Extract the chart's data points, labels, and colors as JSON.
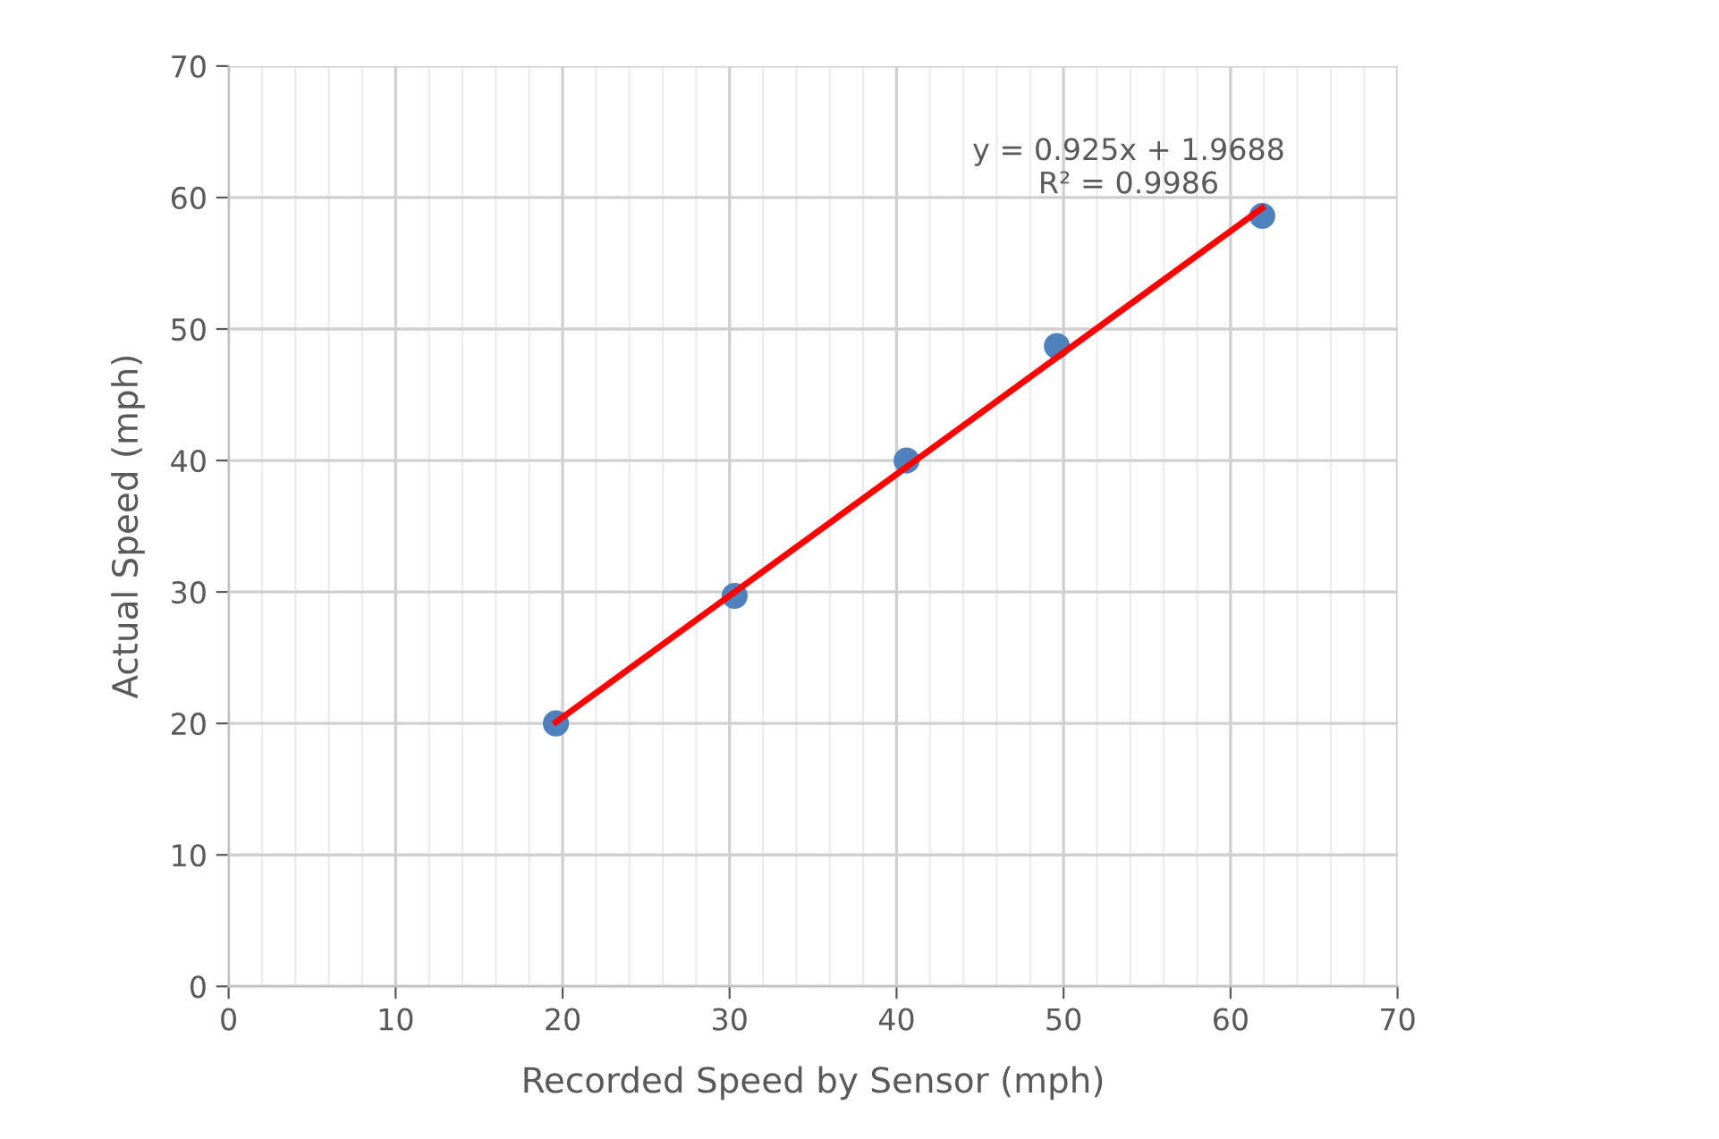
{
  "chart_data": {
    "type": "scatter",
    "xlabel": "Recorded Speed by Sensor (mph)",
    "ylabel": "Actual Speed (mph)",
    "series": [
      {
        "color": "#4f81bd",
        "x": [
          19.6,
          30.3,
          40.6,
          49.6,
          61.9
        ],
        "values": [
          20.0,
          29.7,
          40.0,
          48.7,
          58.6
        ],
        "marker": "circle"
      },
      {
        "type": "line",
        "color": "#ff0000",
        "x": [
          19.6,
          61.9
        ],
        "values": [
          20.1,
          59.2
        ],
        "marker": "none"
      }
    ],
    "annotations": [
      "y = 0.925x + 1.9688\nR² = 0.9986"
    ],
    "xlim": [
      0,
      70
    ],
    "ylim": [
      0,
      70
    ],
    "xticks": [
      0,
      10,
      20,
      30,
      40,
      50,
      60,
      70
    ],
    "yticks": [
      0,
      10,
      20,
      30,
      40,
      50,
      60,
      70
    ],
    "grid": true,
    "legend": false
  }
}
